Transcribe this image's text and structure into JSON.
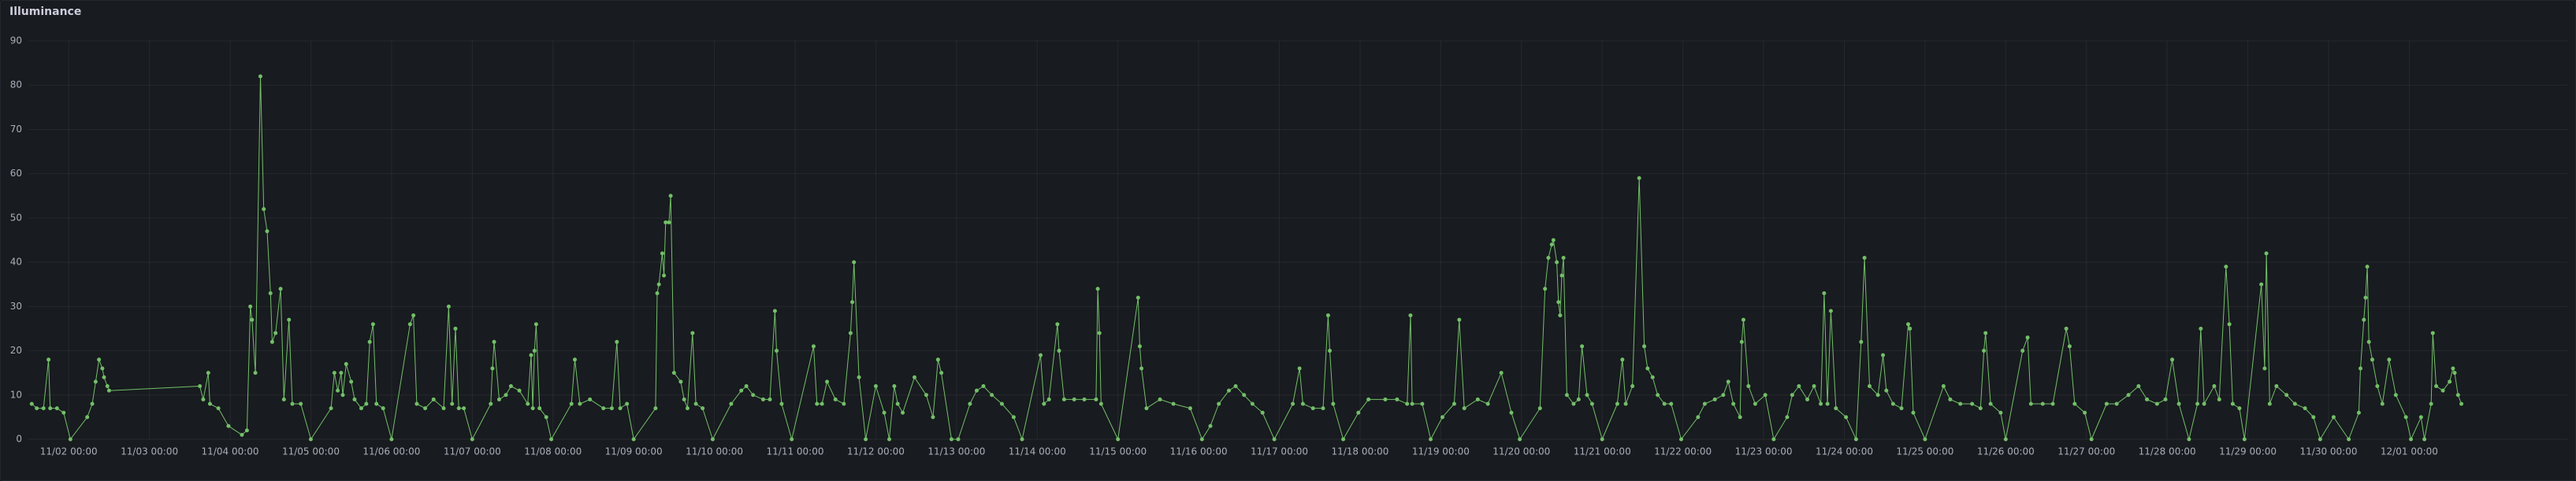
{
  "chart_data": {
    "type": "line",
    "title": "Illuminance",
    "color": "#73bf69",
    "markers": true,
    "grid": true,
    "xlim": [
      "11/01 12:00",
      "12/02 23:00"
    ],
    "xticks": [
      "11/02 00:00",
      "11/03 00:00",
      "11/04 00:00",
      "11/05 00:00",
      "11/06 00:00",
      "11/07 00:00",
      "11/08 00:00",
      "11/09 00:00",
      "11/10 00:00",
      "11/11 00:00",
      "11/12 00:00",
      "11/13 00:00",
      "11/14 00:00",
      "11/15 00:00",
      "11/16 00:00",
      "11/17 00:00",
      "11/18 00:00",
      "11/19 00:00",
      "11/20 00:00",
      "11/21 00:00",
      "11/22 00:00",
      "11/23 00:00",
      "11/24 00:00",
      "11/25 00:00",
      "11/26 00:00",
      "11/27 00:00",
      "11/28 00:00",
      "11/29 00:00",
      "11/30 00:00",
      "12/01 00:00"
    ],
    "ylim": [
      0,
      90
    ],
    "yticks": [
      0,
      10,
      20,
      30,
      40,
      50,
      60,
      70,
      80,
      90
    ],
    "x": [
      "11/01 13:00",
      "11/01 14:30",
      "11/01 16:30",
      "11/01 18:00",
      "11/01 18:30",
      "11/01 20:30",
      "11/01 22:30",
      "11/02 00:30",
      "11/02 05:30",
      "11/02 07:00",
      "11/02 08:00",
      "11/02 09:00",
      "11/02 10:00",
      "11/02 10:30",
      "11/02 11:30",
      "11/02 12:00",
      "11/03 15:00",
      "11/03 16:00",
      "11/03 17:30",
      "11/03 18:00",
      "11/03 20:30",
      "11/03 23:30",
      "11/04 03:30",
      "11/04 05:00",
      "11/04 06:00",
      "11/04 06:30",
      "11/04 07:30",
      "11/04 09:00",
      "11/04 10:00",
      "11/04 11:00",
      "11/04 12:00",
      "11/04 12:30",
      "11/04 13:30",
      "11/04 15:00",
      "11/04 16:00",
      "11/04 17:30",
      "11/04 18:30",
      "11/04 21:00",
      "11/05 00:00",
      "11/05 06:00",
      "11/05 07:00",
      "11/05 08:00",
      "11/05 09:00",
      "11/05 09:30",
      "11/05 10:30",
      "11/05 12:00",
      "11/05 13:00",
      "11/05 15:00",
      "11/05 16:30",
      "11/05 17:30",
      "11/05 18:30",
      "11/05 19:30",
      "11/05 21:30",
      "11/06 00:00",
      "11/06 05:30",
      "11/06 06:30",
      "11/06 07:30",
      "11/06 10:00",
      "11/06 12:30",
      "11/06 15:30",
      "11/06 17:00",
      "11/06 18:00",
      "11/06 19:00",
      "11/06 20:00",
      "11/06 21:30",
      "11/07 00:00",
      "11/07 05:30",
      "11/07 06:00",
      "11/07 06:30",
      "11/07 08:00",
      "11/07 10:00",
      "11/07 11:30",
      "11/07 14:00",
      "11/07 16:30",
      "11/07 17:30",
      "11/07 18:00",
      "11/07 18:30",
      "11/07 19:00",
      "11/07 20:00",
      "11/07 22:00",
      "11/07 23:30",
      "11/08 05:30",
      "11/08 06:30",
      "11/08 08:00",
      "11/08 11:00",
      "11/08 15:00",
      "11/08 17:30",
      "11/08 19:00",
      "11/08 20:00",
      "11/08 22:00",
      "11/09 00:00",
      "11/09 06:30",
      "11/09 07:00",
      "11/09 07:30",
      "11/09 08:30",
      "11/09 09:00",
      "11/09 09:30",
      "11/09 10:30",
      "11/09 11:00",
      "11/09 12:00",
      "11/09 14:00",
      "11/09 15:00",
      "11/09 16:00",
      "11/09 17:30",
      "11/09 18:30",
      "11/09 20:30",
      "11/09 23:30",
      "11/10 05:00",
      "11/10 08:00",
      "11/10 09:30",
      "11/10 11:30",
      "11/10 14:30",
      "11/10 16:30",
      "11/10 18:00",
      "11/10 18:30",
      "11/10 20:00",
      "11/10 23:00",
      "11/11 05:30",
      "11/11 06:30",
      "11/11 08:00",
      "11/11 09:30",
      "11/11 12:00",
      "11/11 14:30",
      "11/11 16:30",
      "11/11 17:00",
      "11/11 17:30",
      "11/11 19:00",
      "11/11 21:00",
      "11/12 00:00",
      "11/12 02:30",
      "11/12 04:00",
      "11/12 05:30",
      "11/12 06:30",
      "11/12 08:00",
      "11/12 11:30",
      "11/12 15:00",
      "11/12 17:00",
      "11/12 18:30",
      "11/12 19:30",
      "11/12 22:30",
      "11/13 00:30",
      "11/13 04:00",
      "11/13 06:00",
      "11/13 08:00",
      "11/13 10:30",
      "11/13 13:30",
      "11/13 17:00",
      "11/13 19:30",
      "11/14 01:00",
      "11/14 02:00",
      "11/14 03:30",
      "11/14 06:00",
      "11/14 06:30",
      "11/14 08:00",
      "11/14 11:00",
      "11/14 14:00",
      "11/14 17:30",
      "11/14 18:00",
      "11/14 18:30",
      "11/14 19:00",
      "11/15 00:00",
      "11/15 06:00",
      "11/15 06:30",
      "11/15 07:00",
      "11/15 08:30",
      "11/15 12:30",
      "11/15 16:30",
      "11/15 21:30",
      "11/16 01:00",
      "11/16 03:30",
      "11/16 06:00",
      "11/16 09:00",
      "11/16 11:00",
      "11/16 13:30",
      "11/16 16:00",
      "11/16 19:00",
      "11/16 22:30",
      "11/17 04:00",
      "11/17 06:00",
      "11/17 07:00",
      "11/17 10:00",
      "11/17 13:00",
      "11/17 14:30",
      "11/17 15:00",
      "11/17 16:00",
      "11/17 19:00",
      "11/17 23:30",
      "11/18 02:30",
      "11/18 07:30",
      "11/18 11:00",
      "11/18 14:00",
      "11/18 15:00",
      "11/18 15:30",
      "11/18 18:30",
      "11/18 21:00",
      "11/19 00:30",
      "11/19 04:00",
      "11/19 05:30",
      "11/19 07:00",
      "11/19 11:00",
      "11/19 14:00",
      "11/19 18:00",
      "11/19 21:00",
      "11/19 23:30",
      "11/20 05:30",
      "11/20 07:00",
      "11/20 08:00",
      "11/20 09:00",
      "11/20 09:30",
      "11/20 10:30",
      "11/20 11:00",
      "11/20 11:30",
      "11/20 12:00",
      "11/20 12:30",
      "11/20 13:30",
      "11/20 15:30",
      "11/20 17:00",
      "11/20 18:00",
      "11/20 19:30",
      "11/20 21:00",
      "11/21 00:00",
      "11/21 04:30",
      "11/21 06:00",
      "11/21 07:00",
      "11/21 09:00",
      "11/21 11:00",
      "11/21 12:30",
      "11/21 13:30",
      "11/21 15:00",
      "11/21 16:30",
      "11/21 18:30",
      "11/21 20:30",
      "11/21 23:30",
      "11/22 04:30",
      "11/22 06:30",
      "11/22 09:30",
      "11/22 12:00",
      "11/22 13:30",
      "11/22 15:00",
      "11/22 17:00",
      "11/22 17:30",
      "11/22 18:00",
      "11/22 19:30",
      "11/22 21:30",
      "11/23 00:30",
      "11/23 03:00",
      "11/23 07:00",
      "11/23 08:30",
      "11/23 10:30",
      "11/23 13:00",
      "11/23 15:00",
      "11/23 17:00",
      "11/23 18:00",
      "11/23 19:00",
      "11/23 20:00",
      "11/23 21:30",
      "11/24 00:30",
      "11/24 03:30",
      "11/24 05:00",
      "11/24 06:00",
      "11/24 07:30",
      "11/24 10:00",
      "11/24 11:30",
      "11/24 12:30",
      "11/24 14:30",
      "11/24 17:00",
      "11/24 19:00",
      "11/24 19:30",
      "11/24 20:30",
      "11/25 00:00",
      "11/25 05:30",
      "11/25 07:30",
      "11/25 10:30",
      "11/25 14:00",
      "11/25 16:30",
      "11/25 17:30",
      "11/25 18:00",
      "11/25 19:30",
      "11/25 22:30",
      "11/26 00:00",
      "11/26 05:00",
      "11/26 06:30",
      "11/26 07:30",
      "11/26 11:00",
      "11/26 14:00",
      "11/26 18:00",
      "11/26 19:00",
      "11/26 20:30",
      "11/26 23:30",
      "11/27 01:30",
      "11/27 06:00",
      "11/27 09:00",
      "11/27 12:30",
      "11/27 15:30",
      "11/27 18:00",
      "11/27 21:00",
      "11/27 23:30",
      "11/28 01:30",
      "11/28 03:30",
      "11/28 06:30",
      "11/28 09:00",
      "11/28 10:00",
      "11/28 11:00",
      "11/28 14:00",
      "11/28 15:30",
      "11/28 17:30",
      "11/28 18:30",
      "11/28 19:30",
      "11/28 21:30",
      "11/28 23:00",
      "11/29 04:00",
      "11/29 05:00",
      "11/29 05:30",
      "11/29 06:30",
      "11/29 08:30",
      "11/29 11:30",
      "11/29 14:00",
      "11/29 17:00",
      "11/29 19:30",
      "11/29 21:30",
      "11/30 01:30",
      "11/30 06:00",
      "11/30 09:00",
      "11/30 09:30",
      "11/30 10:30",
      "11/30 11:00",
      "11/30 11:30",
      "11/30 12:00",
      "11/30 13:00",
      "11/30 14:30",
      "11/30 16:00",
      "11/30 18:00",
      "11/30 20:00",
      "11/30 23:00",
      "12/01 00:30",
      "12/01 03:30",
      "12/01 04:30",
      "12/01 06:30",
      "12/01 07:00",
      "12/01 08:00",
      "12/01 10:00",
      "12/01 12:00",
      "12/01 13:00",
      "12/01 13:30",
      "12/01 14:30",
      "12/01 15:30"
    ],
    "values": [
      8,
      7,
      7,
      18,
      7,
      7,
      6,
      0,
      5,
      8,
      13,
      18,
      16,
      14,
      12,
      11,
      12,
      9,
      15,
      8,
      7,
      3,
      1,
      2,
      30,
      27,
      15,
      82,
      52,
      47,
      33,
      22,
      24,
      34,
      9,
      27,
      8,
      8,
      0,
      7,
      15,
      11,
      15,
      10,
      17,
      13,
      9,
      7,
      8,
      22,
      26,
      8,
      7,
      0,
      26,
      28,
      8,
      7,
      9,
      7,
      30,
      8,
      25,
      7,
      7,
      0,
      8,
      16,
      22,
      9,
      10,
      12,
      11,
      8,
      19,
      7,
      20,
      26,
      7,
      5,
      0,
      8,
      18,
      8,
      9,
      7,
      7,
      22,
      7,
      8,
      0,
      7,
      33,
      35,
      42,
      37,
      49,
      49,
      55,
      15,
      13,
      9,
      7,
      24,
      8,
      7,
      0,
      8,
      11,
      12,
      10,
      9,
      9,
      29,
      20,
      8,
      0,
      21,
      8,
      8,
      13,
      9,
      8,
      24,
      31,
      40,
      14,
      0,
      12,
      6,
      0,
      12,
      8,
      6,
      14,
      10,
      5,
      18,
      15,
      0,
      0,
      8,
      11,
      12,
      10,
      8,
      5,
      0,
      19,
      8,
      9,
      26,
      20,
      9,
      9,
      9,
      9,
      34,
      24,
      8,
      0,
      32,
      21,
      16,
      7,
      9,
      8,
      7,
      0,
      3,
      8,
      11,
      12,
      10,
      8,
      6,
      0,
      8,
      16,
      8,
      7,
      7,
      28,
      20,
      8,
      0,
      6,
      9,
      9,
      9,
      8,
      28,
      8,
      8,
      0,
      5,
      8,
      27,
      7,
      9,
      8,
      15,
      6,
      0,
      7,
      34,
      41,
      44,
      45,
      40,
      31,
      28,
      37,
      41,
      10,
      8,
      9,
      21,
      10,
      8,
      0,
      8,
      18,
      8,
      12,
      59,
      21,
      16,
      14,
      10,
      8,
      8,
      0,
      5,
      8,
      9,
      10,
      13,
      8,
      5,
      22,
      27,
      12,
      8,
      10,
      0,
      5,
      10,
      12,
      9,
      12,
      8,
      33,
      8,
      29,
      7,
      5,
      0,
      22,
      41,
      12,
      10,
      19,
      11,
      8,
      7,
      26,
      25,
      6,
      0,
      12,
      9,
      8,
      8,
      7,
      20,
      24,
      8,
      6,
      0,
      20,
      23,
      8,
      8,
      8,
      25,
      21,
      8,
      6,
      0,
      8,
      8,
      10,
      12,
      9,
      8,
      9,
      18,
      8,
      0,
      8,
      25,
      8,
      12,
      9,
      39,
      26,
      8,
      7,
      0,
      35,
      16,
      42,
      8,
      12,
      10,
      8,
      7,
      5,
      0,
      5,
      0,
      6,
      16,
      27,
      32,
      39,
      22,
      18,
      12,
      8,
      18,
      10,
      5,
      0,
      5,
      0,
      8,
      24,
      12,
      11,
      13,
      16,
      15,
      10,
      8
    ]
  }
}
